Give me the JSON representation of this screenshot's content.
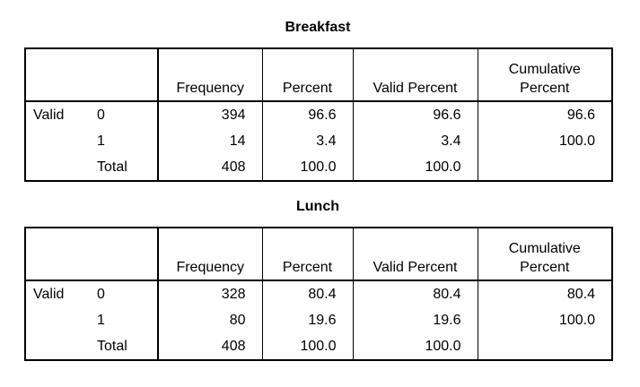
{
  "tables": [
    {
      "title": "Breakfast",
      "headers": [
        "",
        "",
        "Frequency",
        "Percent",
        "Valid Percent",
        "Cumulative\nPercent"
      ],
      "header_cum_line1": "Cumulative",
      "header_cum_line2": "Percent",
      "rows": [
        {
          "label": "Valid",
          "sub": "0",
          "frequency": "394",
          "percent": "96.6",
          "valid_percent": "96.6",
          "cumulative": "96.6"
        },
        {
          "label": "",
          "sub": "1",
          "frequency": "14",
          "percent": "3.4",
          "valid_percent": "3.4",
          "cumulative": "100.0"
        },
        {
          "label": "",
          "sub": "Total",
          "frequency": "408",
          "percent": "100.0",
          "valid_percent": "100.0",
          "cumulative": ""
        }
      ]
    },
    {
      "title": "Lunch",
      "headers": [
        "",
        "",
        "Frequency",
        "Percent",
        "Valid Percent",
        "Cumulative\nPercent"
      ],
      "header_cum_line1": "Cumulative",
      "header_cum_line2": "Percent",
      "rows": [
        {
          "label": "Valid",
          "sub": "0",
          "frequency": "328",
          "percent": "80.4",
          "valid_percent": "80.4",
          "cumulative": "80.4"
        },
        {
          "label": "",
          "sub": "1",
          "frequency": "80",
          "percent": "19.6",
          "valid_percent": "19.6",
          "cumulative": "100.0"
        },
        {
          "label": "",
          "sub": "Total",
          "frequency": "408",
          "percent": "100.0",
          "valid_percent": "100.0",
          "cumulative": ""
        }
      ]
    }
  ],
  "labels": {
    "frequency": "Frequency",
    "percent": "Percent",
    "valid_percent": "Valid Percent"
  }
}
